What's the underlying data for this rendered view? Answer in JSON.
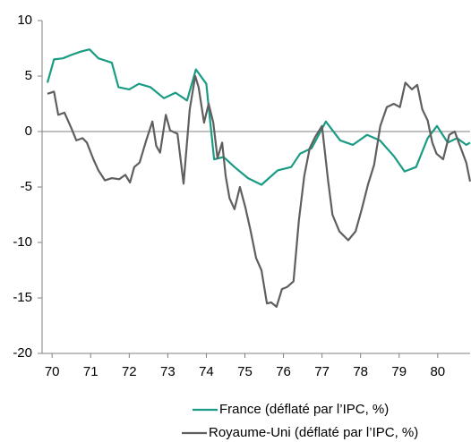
{
  "chart_data": {
    "type": "line",
    "xlim": [
      69.74,
      80.84
    ],
    "xticks": [
      70,
      71,
      72,
      73,
      74,
      75,
      76,
      77,
      78,
      79,
      80
    ],
    "ylim": [
      -20,
      10
    ],
    "yticks": [
      -20,
      -15,
      -10,
      -5,
      0,
      5,
      10
    ],
    "legend": "bottom",
    "series": [
      {
        "name": "France (déflaté par l’IPC, %)",
        "color": "#1a9b84",
        "x": [
          69.88,
          70.05,
          70.28,
          70.5,
          70.74,
          70.97,
          71.2,
          71.55,
          71.72,
          72.0,
          72.25,
          72.55,
          72.9,
          73.2,
          73.5,
          73.73,
          74.0,
          74.2,
          74.45,
          74.73,
          75.08,
          75.43,
          75.85,
          76.2,
          76.43,
          76.73,
          77.1,
          77.47,
          77.8,
          78.17,
          78.5,
          78.86,
          79.14,
          79.44,
          79.74,
          79.98,
          80.26,
          80.5,
          80.74,
          80.84
        ],
        "values": [
          4.4,
          6.5,
          6.6,
          6.9,
          7.2,
          7.4,
          6.6,
          6.2,
          4.0,
          3.8,
          4.3,
          4.0,
          3.0,
          3.5,
          2.8,
          5.6,
          4.3,
          -2.5,
          -2.3,
          -3.2,
          -4.2,
          -4.8,
          -3.5,
          -3.2,
          -2.0,
          -1.5,
          0.9,
          -0.8,
          -1.2,
          -0.3,
          -0.8,
          -2.2,
          -3.6,
          -3.2,
          -0.6,
          0.5,
          -1.0,
          -0.6,
          -1.2,
          -1.0
        ]
      },
      {
        "name": "Royaume-Uni (déflaté par l’IPC, %)",
        "color": "#5f5f5f",
        "x": [
          69.88,
          70.05,
          70.16,
          70.32,
          70.5,
          70.63,
          70.79,
          70.9,
          71.07,
          71.2,
          71.37,
          71.55,
          71.74,
          71.9,
          72.02,
          72.13,
          72.27,
          72.44,
          72.6,
          72.7,
          72.8,
          72.95,
          73.06,
          73.25,
          73.41,
          73.57,
          73.71,
          73.8,
          73.94,
          74.06,
          74.18,
          74.29,
          74.41,
          74.5,
          74.6,
          74.73,
          74.87,
          75.01,
          75.15,
          75.29,
          75.43,
          75.57,
          75.68,
          75.82,
          75.96,
          76.1,
          76.26,
          76.4,
          76.54,
          76.68,
          76.82,
          77.0,
          77.16,
          77.27,
          77.45,
          77.68,
          77.87,
          78.03,
          78.19,
          78.35,
          78.51,
          78.68,
          78.86,
          79.02,
          79.16,
          79.33,
          79.47,
          79.6,
          79.74,
          79.86,
          79.97,
          80.14,
          80.3,
          80.44,
          80.6,
          80.74,
          80.84
        ],
        "values": [
          3.4,
          3.6,
          1.5,
          1.7,
          0.3,
          -0.8,
          -0.6,
          -1.0,
          -2.5,
          -3.5,
          -4.4,
          -4.2,
          -4.3,
          -3.9,
          -4.6,
          -3.2,
          -2.8,
          -0.8,
          0.9,
          -1.3,
          -1.9,
          1.5,
          0.1,
          -0.2,
          -4.7,
          2.0,
          5.0,
          4.0,
          0.8,
          2.5,
          0.8,
          -2.4,
          -1.0,
          -4.0,
          -6.0,
          -7.0,
          -5.0,
          -6.8,
          -9.0,
          -11.4,
          -12.5,
          -15.5,
          -15.4,
          -15.8,
          -14.2,
          -14.0,
          -13.5,
          -8.0,
          -4.0,
          -1.5,
          -0.5,
          0.5,
          -4.5,
          -7.5,
          -9.0,
          -9.8,
          -9.0,
          -7.0,
          -4.8,
          -3.0,
          0.5,
          2.2,
          2.5,
          2.2,
          4.4,
          3.8,
          4.2,
          2.0,
          1.0,
          -1.0,
          -2.0,
          -2.5,
          -0.3,
          0.0,
          -1.5,
          -2.8,
          -4.5
        ]
      }
    ]
  }
}
